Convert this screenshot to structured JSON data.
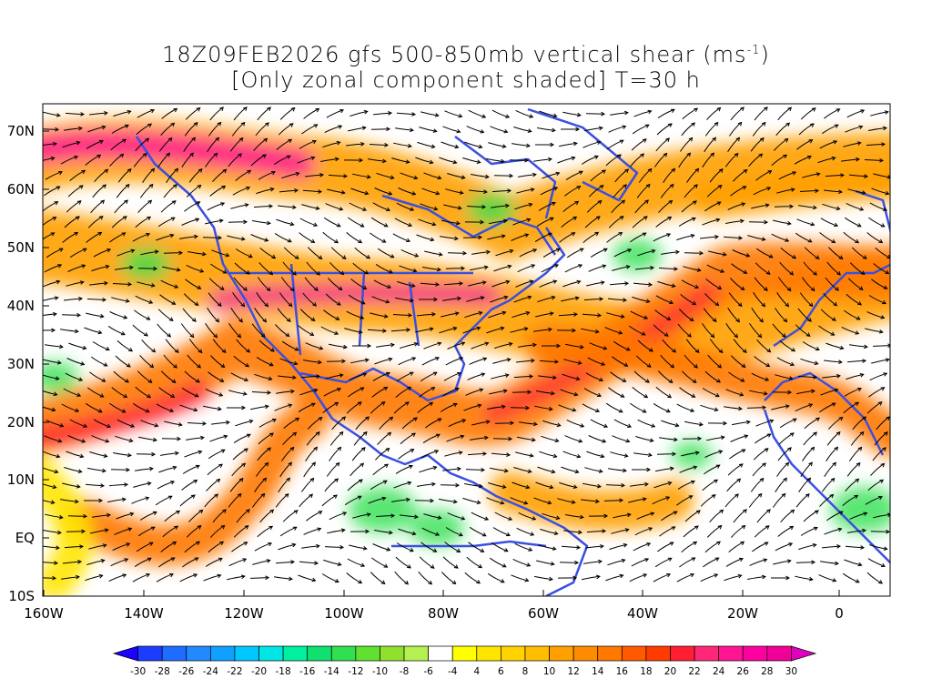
{
  "title": {
    "line1": "18Z09FEB2026 gfs 500-850mb vertical shear (ms",
    "unit_exponent": "-1",
    "unit_close": ")",
    "line2": "[Only zonal component shaded] T=30 h"
  },
  "map": {
    "lat_labels": [
      "70N",
      "60N",
      "50N",
      "40N",
      "30N",
      "20N",
      "10N",
      "EQ",
      "10S"
    ],
    "lon_labels": [
      "160W",
      "140W",
      "120W",
      "100W",
      "80W",
      "60W",
      "40W",
      "20W",
      "0"
    ],
    "lat_range": [
      -10,
      75
    ],
    "lon_range": [
      -160,
      10
    ],
    "coastline_color": "#3b4fe0",
    "streamline_color": "#000000"
  },
  "colorbar": {
    "ticks": [
      "-30",
      "-28",
      "-26",
      "-24",
      "-22",
      "-20",
      "-18",
      "-16",
      "-14",
      "-12",
      "-10",
      "-8",
      "-6",
      "-4",
      "4",
      "6",
      "8",
      "10",
      "12",
      "14",
      "16",
      "18",
      "20",
      "22",
      "24",
      "26",
      "28",
      "30"
    ],
    "colors": [
      "#1e00ff",
      "#1e3cff",
      "#1f6cff",
      "#2289ff",
      "#10a0ff",
      "#00c8ff",
      "#00e6e6",
      "#00f0a0",
      "#10e070",
      "#30e050",
      "#60e030",
      "#90e030",
      "#b4f050",
      "#ffffff",
      "#ffff00",
      "#ffe600",
      "#ffd200",
      "#ffbe00",
      "#ffa000",
      "#ff8c00",
      "#ff7800",
      "#ff5a00",
      "#ff3c00",
      "#ff1e32",
      "#ff2878",
      "#ff1493",
      "#ff00a0",
      "#f00096",
      "#e000c0"
    ]
  }
}
